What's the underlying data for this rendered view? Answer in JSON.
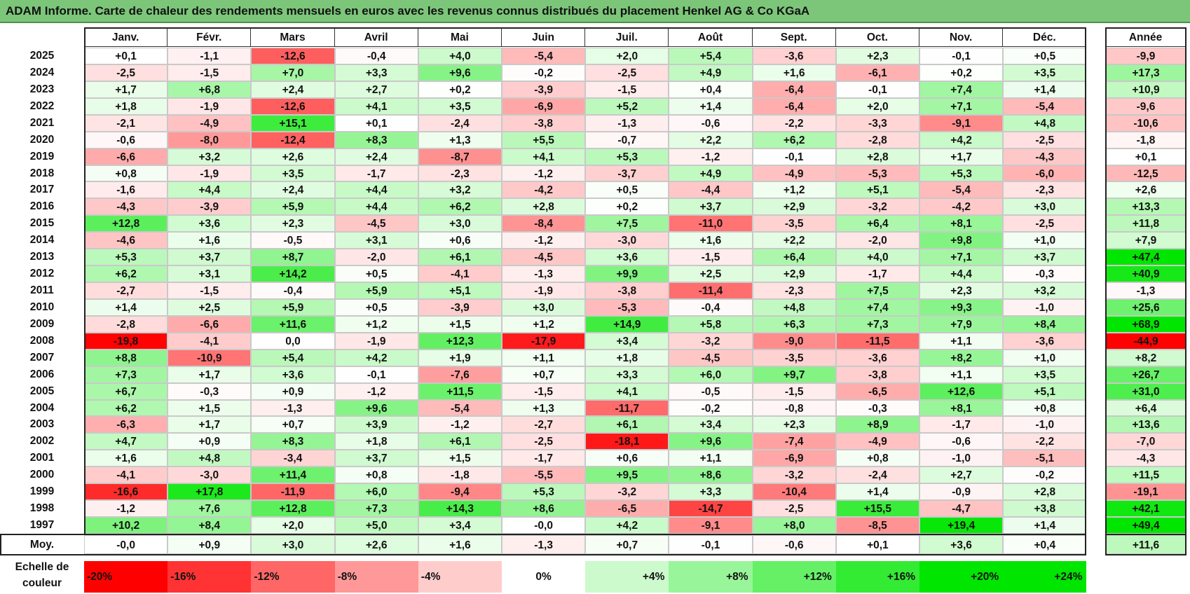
{
  "title": "ADAM Informe. Carte de chaleur des rendements mensuels en euros avec les revenus connus distribués du placement Henkel AG & Co KGaA",
  "chart_data": {
    "type": "heatmap",
    "columns": [
      "Janv.",
      "Févr.",
      "Mars",
      "Avril",
      "Mai",
      "Juin",
      "Juil.",
      "Août",
      "Sept.",
      "Oct.",
      "Nov.",
      "Déc."
    ],
    "year_column": "Année",
    "rows": [
      {
        "year": "2025",
        "values": [
          "+0,1",
          "-1,1",
          "-12,6",
          "-0,4",
          "+4,0",
          "-5,4",
          "+2,0",
          "+5,4",
          "-3,6",
          "+2,3",
          "-0,1",
          "+0,5"
        ],
        "annual": "-9,9"
      },
      {
        "year": "2024",
        "values": [
          "-2,5",
          "-1,5",
          "+7,0",
          "+3,3",
          "+9,6",
          "-0,2",
          "-2,5",
          "+4,9",
          "+1,6",
          "-6,1",
          "+0,2",
          "+3,5"
        ],
        "annual": "+17,3"
      },
      {
        "year": "2023",
        "values": [
          "+1,7",
          "+6,8",
          "+2,4",
          "+2,7",
          "+0,2",
          "-3,9",
          "-1,5",
          "+0,4",
          "-6,4",
          "-0,1",
          "+7,4",
          "+1,4"
        ],
        "annual": "+10,9"
      },
      {
        "year": "2022",
        "values": [
          "+1,8",
          "-1,9",
          "-12,6",
          "+4,1",
          "+3,5",
          "-6,9",
          "+5,2",
          "+1,4",
          "-6,4",
          "+2,0",
          "+7,1",
          "-5,4"
        ],
        "annual": "-9,6"
      },
      {
        "year": "2021",
        "values": [
          "-2,1",
          "-4,9",
          "+15,1",
          "+0,1",
          "-2,4",
          "-3,8",
          "-1,3",
          "-0,6",
          "-2,2",
          "-3,3",
          "-9,1",
          "+4,8"
        ],
        "annual": "-10,6"
      },
      {
        "year": "2020",
        "values": [
          "-0,6",
          "-8,0",
          "-12,4",
          "+8,3",
          "+1,3",
          "+5,5",
          "-0,7",
          "+2,2",
          "+6,2",
          "-2,8",
          "+4,2",
          "-2,5"
        ],
        "annual": "-1,8"
      },
      {
        "year": "2019",
        "values": [
          "-6,6",
          "+3,2",
          "+2,6",
          "+2,4",
          "-8,7",
          "+4,1",
          "+5,3",
          "-1,2",
          "-0,1",
          "+2,8",
          "+1,7",
          "-4,3"
        ],
        "annual": "+0,1"
      },
      {
        "year": "2018",
        "values": [
          "+0,8",
          "-1,9",
          "+3,5",
          "-1,7",
          "-2,3",
          "-1,2",
          "-3,7",
          "+4,9",
          "-4,9",
          "-5,3",
          "+5,3",
          "-6,0"
        ],
        "annual": "-12,5"
      },
      {
        "year": "2017",
        "values": [
          "-1,6",
          "+4,4",
          "+2,4",
          "+4,4",
          "+3,2",
          "-4,2",
          "+0,5",
          "-4,4",
          "+1,2",
          "+5,1",
          "-5,4",
          "-2,3"
        ],
        "annual": "+2,6"
      },
      {
        "year": "2016",
        "values": [
          "-4,3",
          "-3,9",
          "+5,9",
          "+4,4",
          "+6,2",
          "+2,8",
          "+0,2",
          "+3,7",
          "+2,9",
          "-3,2",
          "-4,2",
          "+3,0"
        ],
        "annual": "+13,3"
      },
      {
        "year": "2015",
        "values": [
          "+12,8",
          "+3,6",
          "+2,3",
          "-4,5",
          "+3,0",
          "-8,4",
          "+7,5",
          "-11,0",
          "-3,5",
          "+6,4",
          "+8,1",
          "-2,5"
        ],
        "annual": "+11,8"
      },
      {
        "year": "2014",
        "values": [
          "-4,6",
          "+1,6",
          "-0,5",
          "+3,1",
          "+0,6",
          "-1,2",
          "-3,0",
          "+1,6",
          "+2,2",
          "-2,0",
          "+9,8",
          "+1,0"
        ],
        "annual": "+7,9"
      },
      {
        "year": "2013",
        "values": [
          "+5,3",
          "+3,7",
          "+8,7",
          "-2,0",
          "+6,1",
          "-4,5",
          "+3,6",
          "-1,5",
          "+6,4",
          "+4,0",
          "+7,1",
          "+3,7"
        ],
        "annual": "+47,4"
      },
      {
        "year": "2012",
        "values": [
          "+6,2",
          "+3,1",
          "+14,2",
          "+0,5",
          "-4,1",
          "-1,3",
          "+9,9",
          "+2,5",
          "+2,9",
          "-1,7",
          "+4,4",
          "-0,3"
        ],
        "annual": "+40,9"
      },
      {
        "year": "2011",
        "values": [
          "-2,7",
          "-1,5",
          "-0,4",
          "+5,9",
          "+5,1",
          "-1,9",
          "-3,8",
          "-11,4",
          "-2,3",
          "+7,5",
          "+2,3",
          "+3,2"
        ],
        "annual": "-1,3"
      },
      {
        "year": "2010",
        "values": [
          "+1,4",
          "+2,5",
          "+5,9",
          "+0,5",
          "-3,9",
          "+3,0",
          "-5,3",
          "-0,4",
          "+4,8",
          "+7,4",
          "+9,3",
          "-1,0"
        ],
        "annual": "+25,6"
      },
      {
        "year": "2009",
        "values": [
          "-2,8",
          "-6,6",
          "+11,6",
          "+1,2",
          "+1,5",
          "+1,2",
          "+14,9",
          "+5,8",
          "+6,3",
          "+7,3",
          "+7,9",
          "+8,4"
        ],
        "annual": "+68,9"
      },
      {
        "year": "2008",
        "values": [
          "-19,8",
          "-4,1",
          "0,0",
          "-1,9",
          "+12,3",
          "-17,9",
          "+3,4",
          "-3,2",
          "-9,0",
          "-11,5",
          "+1,1",
          "-3,6"
        ],
        "annual": "-44,9"
      },
      {
        "year": "2007",
        "values": [
          "+8,8",
          "-10,9",
          "+5,4",
          "+4,2",
          "+1,9",
          "+1,1",
          "+1,8",
          "-4,5",
          "-3,5",
          "-3,6",
          "+8,2",
          "+1,0"
        ],
        "annual": "+8,2"
      },
      {
        "year": "2006",
        "values": [
          "+7,3",
          "+1,7",
          "+3,6",
          "-0,1",
          "-7,6",
          "+0,7",
          "+3,3",
          "+6,0",
          "+9,7",
          "-3,8",
          "+1,1",
          "+3,5"
        ],
        "annual": "+26,7"
      },
      {
        "year": "2005",
        "values": [
          "+6,7",
          "-0,3",
          "+0,9",
          "-1,2",
          "+11,5",
          "-1,5",
          "+4,1",
          "-0,5",
          "-1,5",
          "-6,5",
          "+12,6",
          "+5,1"
        ],
        "annual": "+31,0"
      },
      {
        "year": "2004",
        "values": [
          "+6,2",
          "+1,5",
          "-1,3",
          "+9,6",
          "-5,4",
          "+1,3",
          "-11,7",
          "-0,2",
          "-0,8",
          "-0,3",
          "+8,1",
          "+0,8"
        ],
        "annual": "+6,4"
      },
      {
        "year": "2003",
        "values": [
          "-6,3",
          "+1,7",
          "+0,7",
          "+3,9",
          "-1,2",
          "-2,7",
          "+6,1",
          "+3,4",
          "+2,3",
          "+8,9",
          "-1,7",
          "-1,0"
        ],
        "annual": "+13,6"
      },
      {
        "year": "2002",
        "values": [
          "+4,7",
          "+0,9",
          "+8,3",
          "+1,8",
          "+6,1",
          "-2,5",
          "-18,1",
          "+9,6",
          "-7,4",
          "-4,9",
          "-0,6",
          "-2,2"
        ],
        "annual": "-7,0"
      },
      {
        "year": "2001",
        "values": [
          "+1,6",
          "+4,8",
          "-3,4",
          "+3,7",
          "+1,5",
          "-1,7",
          "+0,6",
          "+1,1",
          "-6,9",
          "+0,8",
          "-1,0",
          "-5,1"
        ],
        "annual": "-4,3"
      },
      {
        "year": "2000",
        "values": [
          "-4,1",
          "-3,0",
          "+11,4",
          "+0,8",
          "-1,8",
          "-5,5",
          "+9,5",
          "+8,6",
          "-3,2",
          "-2,4",
          "+2,7",
          "-0,2"
        ],
        "annual": "+11,5"
      },
      {
        "year": "1999",
        "values": [
          "-16,6",
          "+17,8",
          "-11,9",
          "+6,0",
          "-9,4",
          "+5,3",
          "-3,2",
          "+3,3",
          "-10,4",
          "+1,4",
          "-0,9",
          "+2,8"
        ],
        "annual": "-19,1"
      },
      {
        "year": "1998",
        "values": [
          "-1,2",
          "+7,6",
          "+12,8",
          "+7,3",
          "+14,3",
          "+8,6",
          "-6,5",
          "-14,7",
          "-2,5",
          "+15,5",
          "-4,7",
          "+3,8"
        ],
        "annual": "+42,1"
      },
      {
        "year": "1997",
        "values": [
          "+10,2",
          "+8,4",
          "+2,0",
          "+5,0",
          "+3,4",
          "-0,0",
          "+4,2",
          "-9,1",
          "+8,0",
          "-8,5",
          "+19,4",
          "+1,4"
        ],
        "annual": "+49,4"
      }
    ],
    "average": {
      "label": "Moy.",
      "values": [
        "-0,0",
        "+0,9",
        "+3,0",
        "+2,6",
        "+1,6",
        "-1,3",
        "+0,7",
        "-0,1",
        "-0,6",
        "+0,1",
        "+3,6",
        "+0,4"
      ],
      "annual": "+11,6"
    },
    "scale": {
      "label_line1": "Echelle de",
      "label_line2": "couleur",
      "steps": [
        "-20%",
        "-16%",
        "-12%",
        "-8%",
        "-4%",
        "0%",
        "+4%",
        "+8%",
        "+12%",
        "+16%",
        "+20%",
        "+24%"
      ]
    },
    "colors": {
      "negative": "#ff0000",
      "neutral": "#ffffff",
      "positive": "#00e600",
      "title_bg": "#7cc67a"
    }
  }
}
